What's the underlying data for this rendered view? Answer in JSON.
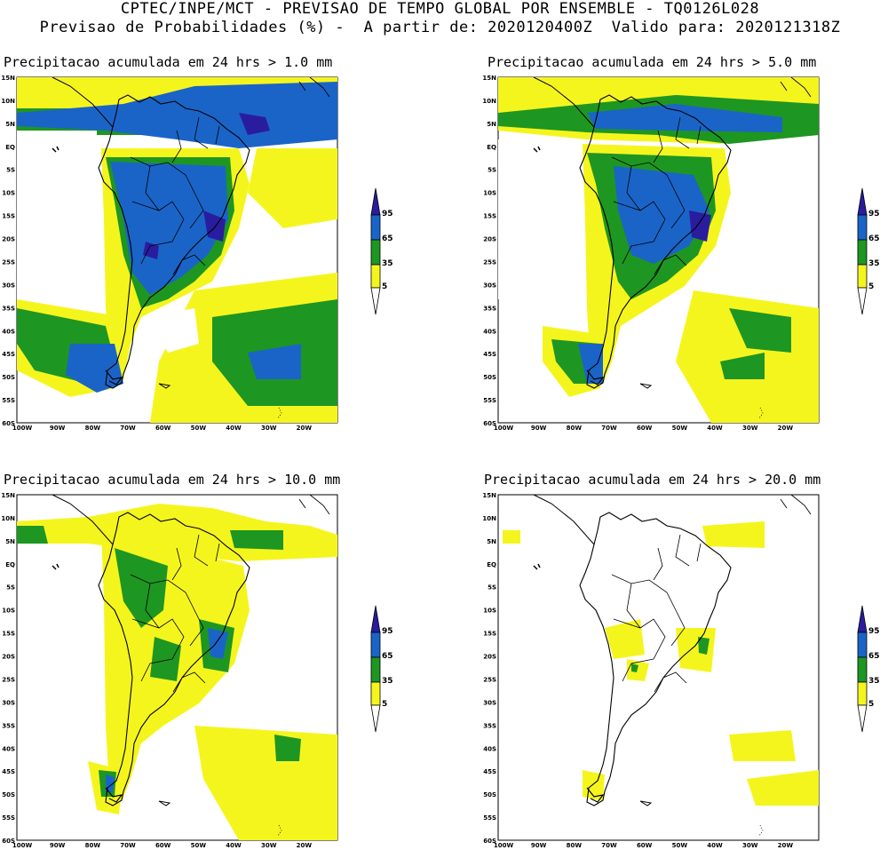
{
  "header": {
    "line1": "CPTEC/INPE/MCT - PREVISAO DE TEMPO GLOBAL POR ENSEMBLE - TQ0126L028",
    "line2": "Previsao de Probabilidades (%) -  A partir de: 2020120400Z  Valido para: 2020121318Z"
  },
  "axes": {
    "lat_labels": [
      "15N",
      "10N",
      "5N",
      "EQ",
      "5S",
      "10S",
      "15S",
      "20S",
      "25S",
      "30S",
      "35S",
      "40S",
      "45S",
      "50S",
      "55S",
      "60S"
    ],
    "lon_labels": [
      "100W",
      "90W",
      "80W",
      "70W",
      "60W",
      "50W",
      "40W",
      "30W",
      "20W"
    ]
  },
  "legend": {
    "levels": [
      "95",
      "65",
      "35",
      "5"
    ],
    "colors": {
      "very_high": "#2a1c9e",
      "high": "#1a64c8",
      "mid": "#1e9622",
      "low": "#f5f51e",
      "land_outline": "#000000"
    }
  },
  "panels": [
    {
      "title": "Precipitacao acumulada em 24 hrs > 1.0 mm"
    },
    {
      "title": "Precipitacao acumulada em 24 hrs > 5.0 mm"
    },
    {
      "title": "Precipitacao acumulada em 24 hrs > 10.0 mm"
    },
    {
      "title": "Precipitacao acumulada em 24 hrs > 20.0 mm"
    }
  ]
}
